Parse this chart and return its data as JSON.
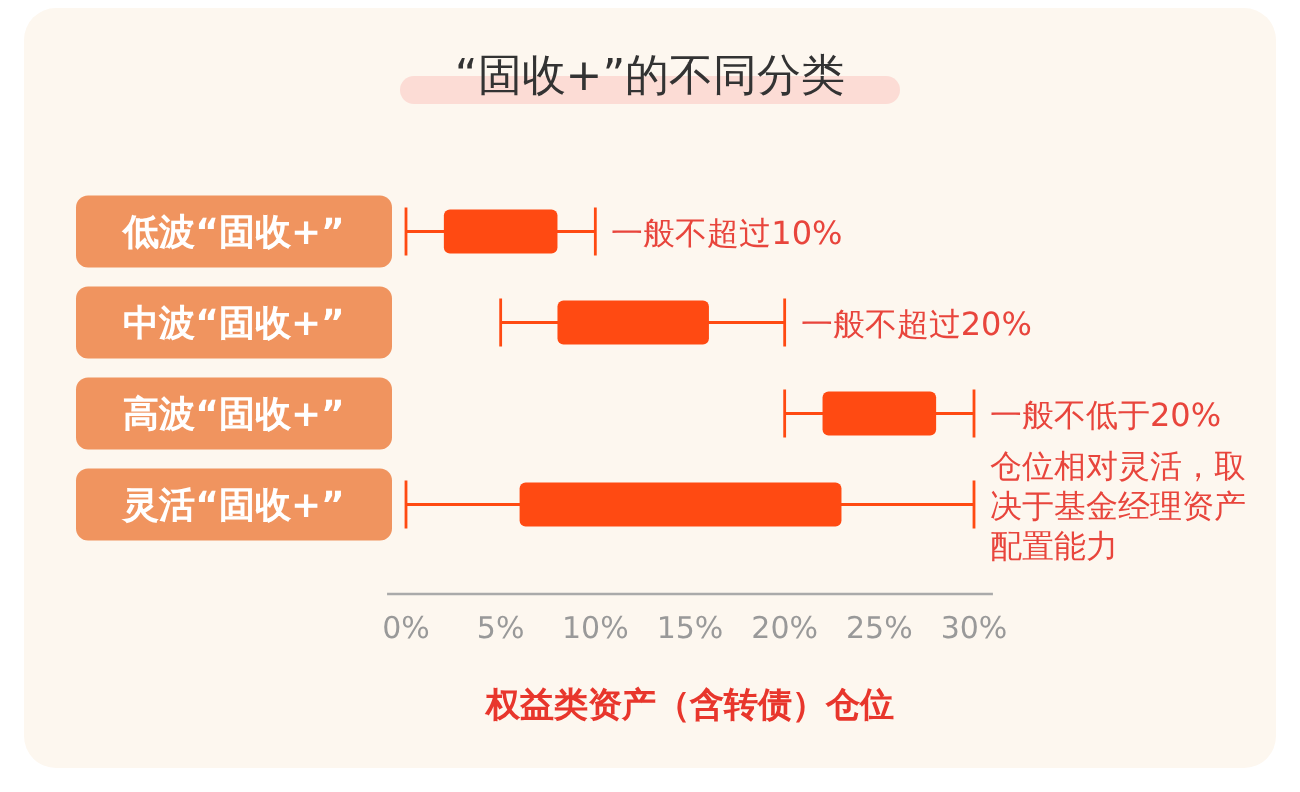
{
  "chart_data": {
    "type": "bar",
    "orientation": "horizontal",
    "title": "“固收+”的不同分类",
    "xlabel": "权益类资产（含转债）仓位",
    "categories": [
      "低波“固收+”",
      "中波“固收+”",
      "高波“固收+”",
      "灵活“固收+”"
    ],
    "base": [
      2,
      8,
      22,
      6
    ],
    "values": [
      6,
      8,
      6,
      17
    ],
    "errors": [
      [
        0,
        10
      ],
      [
        5,
        20
      ],
      [
        20,
        30
      ],
      [
        0,
        30
      ]
    ],
    "color": "#ff4a12",
    "xlim": [
      -1,
      31
    ],
    "xticks": [
      {
        "value": 0,
        "label": "0%"
      },
      {
        "value": 5,
        "label": "5%"
      },
      {
        "value": 10,
        "label": "10%"
      },
      {
        "value": 15,
        "label": "15%"
      },
      {
        "value": 20,
        "label": "20%"
      },
      {
        "value": 25,
        "label": "25%"
      },
      {
        "value": 30,
        "label": "30%"
      }
    ],
    "annotations": [
      {
        "text": "一般不超过10%",
        "x": 10,
        "y": "低波“固收+”"
      },
      {
        "text": "一般不超过20%",
        "x": 20,
        "y": "中波“固收+”"
      },
      {
        "text": "一般不低于20%",
        "x": 30,
        "y": "高波“固收+”"
      },
      {
        "text": "仓位相对灵活，取决于基金经理资产配置能力",
        "x": 30,
        "y": "灵活“固收+”"
      }
    ]
  }
}
